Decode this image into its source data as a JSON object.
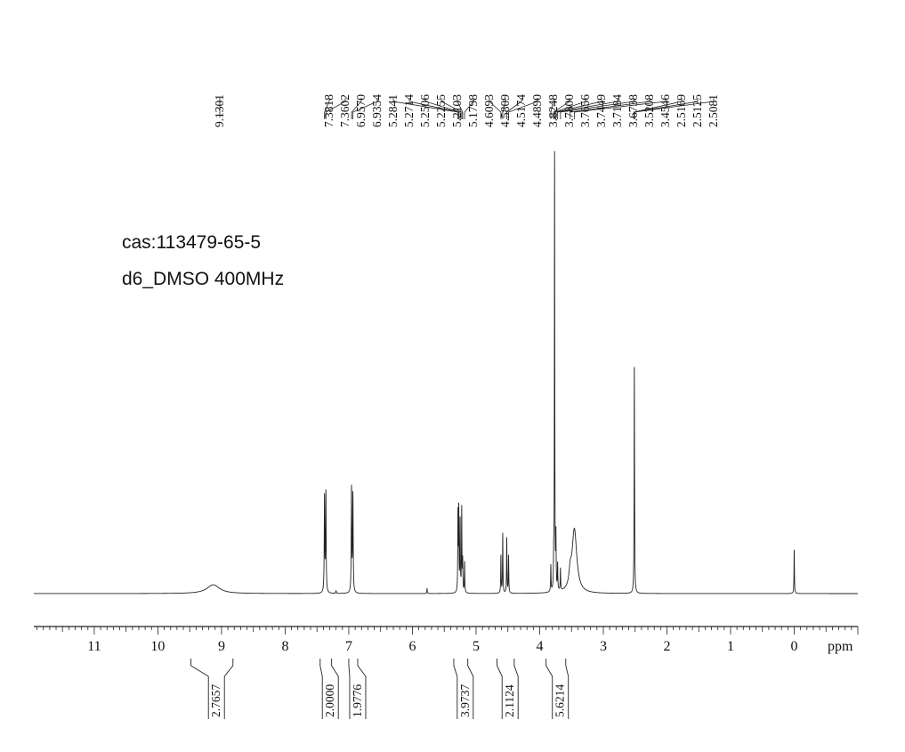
{
  "chart_data": {
    "type": "line",
    "title": "",
    "xlabel": "ppm",
    "ylabel": "",
    "x_reversed": true,
    "xlim": [
      11.95,
      -1.0
    ],
    "x_ticks": [
      11,
      10,
      9,
      8,
      7,
      6,
      5,
      4,
      3,
      2,
      1,
      0
    ],
    "x_tick_labels": [
      "11",
      "10",
      "9",
      "8",
      "7",
      "6",
      "5",
      "4",
      "3",
      "2",
      "1",
      "0"
    ],
    "annotations": [
      "cas:113479-65-5",
      "d6_DMSO 400MHz"
    ],
    "peak_list": [
      "9.1301",
      "7.3818",
      "7.3602",
      "6.9570",
      "6.9354",
      "5.2841",
      "5.2714",
      "5.2506",
      "5.2255",
      "5.2103",
      "5.1798",
      "4.6093",
      "4.5809",
      "4.5174",
      "4.4890",
      "3.8248",
      "3.7800",
      "3.7656",
      "3.7449",
      "3.7184",
      "3.6738",
      "3.5208",
      "3.4546",
      "2.5169",
      "2.5125",
      "2.5081"
    ],
    "integrals": [
      {
        "label": "2.7657",
        "from": 9.48,
        "to": 8.82
      },
      {
        "label": "2.0000",
        "from": 7.45,
        "to": 7.27
      },
      {
        "label": "1.9776",
        "from": 7.0,
        "to": 6.86
      },
      {
        "label": "3.9737",
        "from": 5.35,
        "to": 5.13
      },
      {
        "label": "2.1124",
        "from": 4.67,
        "to": 4.4
      },
      {
        "label": "5.6214",
        "from": 3.9,
        "to": 3.59
      }
    ],
    "signals": [
      {
        "ppm": 9.13,
        "height": 0.02,
        "width": 0.12
      },
      {
        "ppm": 7.3818,
        "height": 0.215,
        "width": 0.005
      },
      {
        "ppm": 7.3602,
        "height": 0.225,
        "width": 0.005
      },
      {
        "ppm": 6.957,
        "height": 0.235,
        "width": 0.005
      },
      {
        "ppm": 6.9354,
        "height": 0.22,
        "width": 0.005
      },
      {
        "ppm": 5.2841,
        "height": 0.175,
        "width": 0.004
      },
      {
        "ppm": 5.2714,
        "height": 0.185,
        "width": 0.004
      },
      {
        "ppm": 5.2506,
        "height": 0.16,
        "width": 0.004
      },
      {
        "ppm": 5.2255,
        "height": 0.19,
        "width": 0.004
      },
      {
        "ppm": 5.2103,
        "height": 0.07,
        "width": 0.004
      },
      {
        "ppm": 5.1798,
        "height": 0.07,
        "width": 0.004
      },
      {
        "ppm": 4.6093,
        "height": 0.085,
        "width": 0.004
      },
      {
        "ppm": 4.5809,
        "height": 0.135,
        "width": 0.004
      },
      {
        "ppm": 4.5174,
        "height": 0.125,
        "width": 0.004
      },
      {
        "ppm": 4.489,
        "height": 0.085,
        "width": 0.004
      },
      {
        "ppm": 3.8248,
        "height": 0.06,
        "width": 0.004
      },
      {
        "ppm": 3.78,
        "height": 0.065,
        "width": 0.004
      },
      {
        "ppm": 3.7656,
        "height": 1.0,
        "width": 0.0035
      },
      {
        "ppm": 3.7449,
        "height": 0.12,
        "width": 0.004
      },
      {
        "ppm": 3.7184,
        "height": 0.06,
        "width": 0.004
      },
      {
        "ppm": 3.6738,
        "height": 0.05,
        "width": 0.004
      },
      {
        "ppm": 3.52,
        "height": 0.03,
        "width": 0.02
      },
      {
        "ppm": 3.4546,
        "height": 0.145,
        "width": 0.045
      },
      {
        "ppm": 2.5125,
        "height": 0.52,
        "width": 0.004
      },
      {
        "ppm": 5.77,
        "height": 0.012,
        "width": 0.004
      },
      {
        "ppm": 7.2,
        "height": 0.006,
        "width": 0.005
      },
      {
        "ppm": 0.0,
        "height": 0.1,
        "width": 0.004
      }
    ]
  }
}
